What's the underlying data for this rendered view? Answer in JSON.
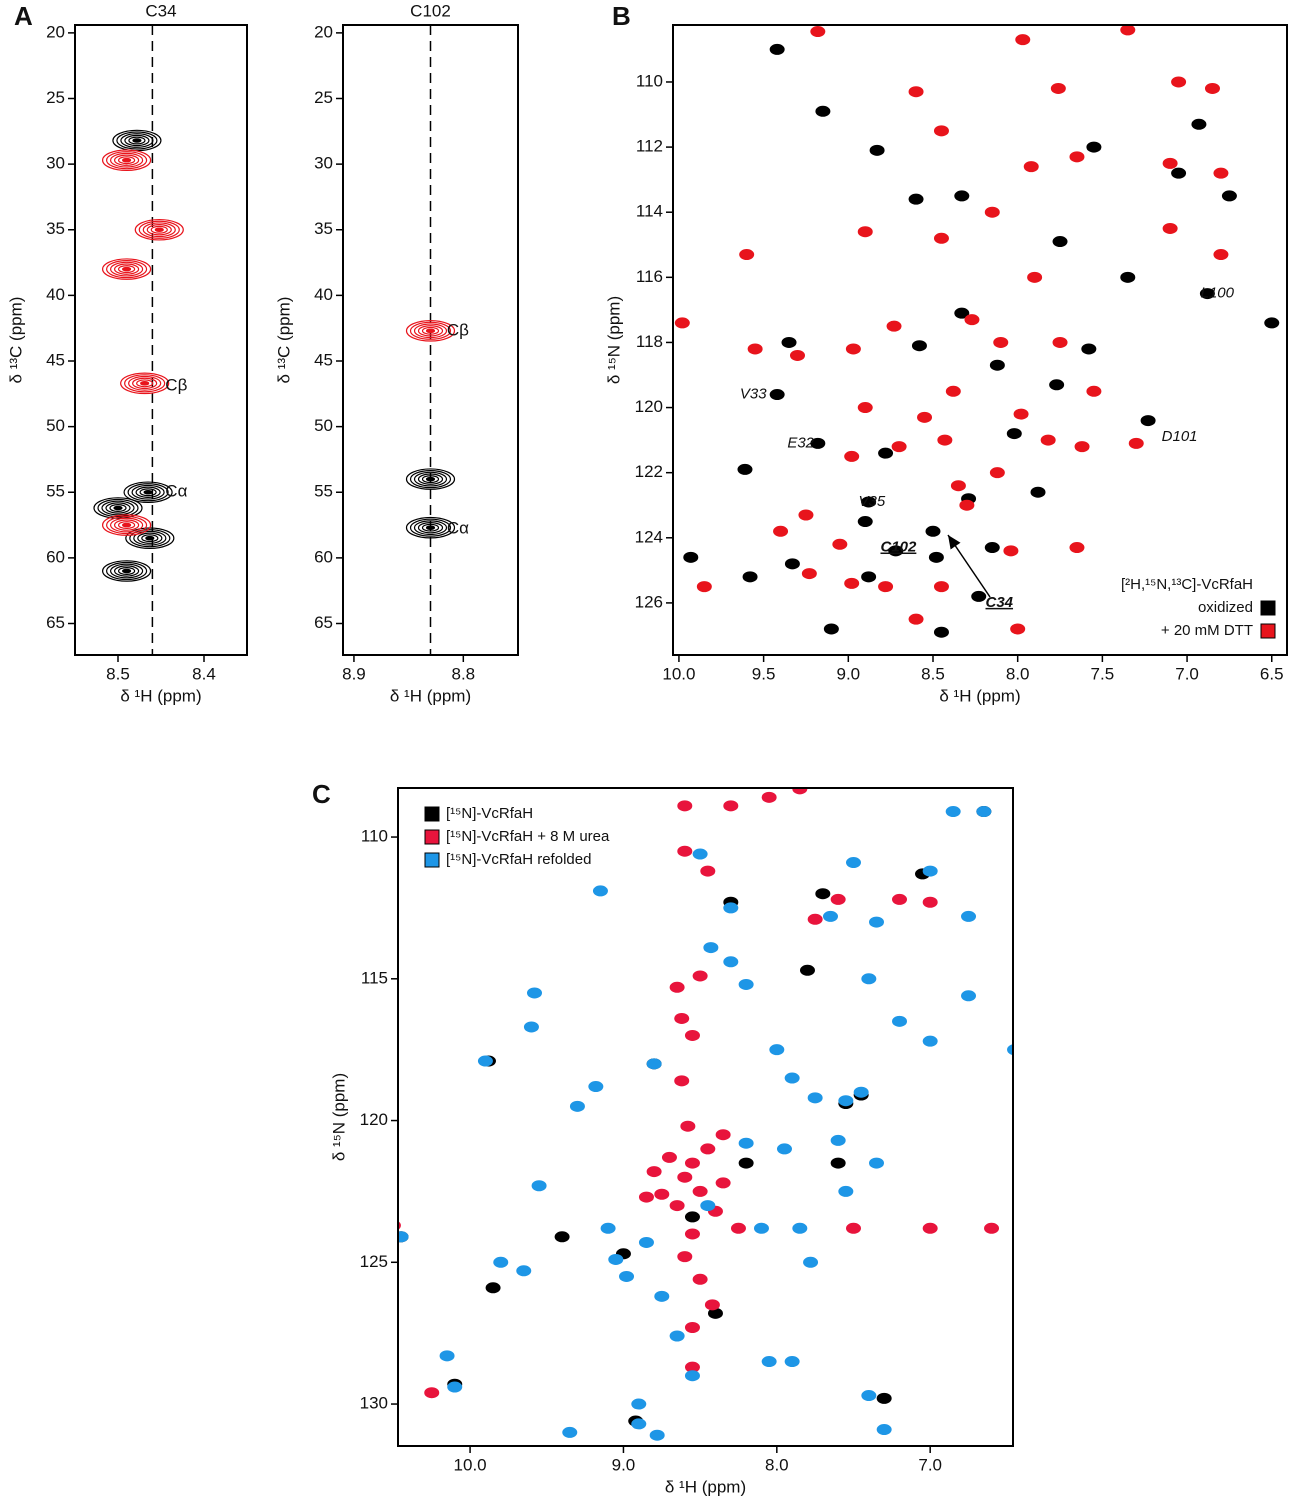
{
  "chart_data": [
    {
      "type": "scatter",
      "panel": "A",
      "title": "C34",
      "x_label": "δ ¹H (ppm)",
      "y_label": "δ ¹³C (ppm)",
      "xlim": [
        8.55,
        8.35
      ],
      "ylim": [
        19.4,
        67.4
      ],
      "x_reversed": true,
      "y_reversed": true,
      "xticks": [
        8.5,
        8.4
      ],
      "yticks": [
        20,
        25,
        30,
        35,
        40,
        45,
        50,
        55,
        60,
        65
      ],
      "vline": 8.46,
      "series": [
        {
          "color": "#000000",
          "x": [
            8.5,
            8.465,
            8.463,
            8.49,
            8.478
          ],
          "y": [
            56.2,
            55.0,
            58.5,
            61.0,
            28.2
          ]
        },
        {
          "color": "#e8141c",
          "x": [
            8.49,
            8.49,
            8.452,
            8.469,
            8.49
          ],
          "y": [
            29.7,
            38.0,
            35.0,
            46.7,
            57.5
          ]
        }
      ],
      "annotations": [
        {
          "text": "Cβ",
          "x": 8.445,
          "y": 46.9
        },
        {
          "text": "Cα",
          "x": 8.445,
          "y": 55.0
        }
      ]
    },
    {
      "type": "scatter",
      "title": "C102",
      "x_label": "δ ¹H (ppm)",
      "y_label": "δ ¹³C (ppm)",
      "xlim": [
        8.91,
        8.75
      ],
      "ylim": [
        19.4,
        67.4
      ],
      "x_reversed": true,
      "y_reversed": true,
      "xticks": [
        8.9,
        8.8
      ],
      "yticks": [
        20,
        25,
        30,
        35,
        40,
        45,
        50,
        55,
        60,
        65
      ],
      "vline": 8.83,
      "series": [
        {
          "color": "#000000",
          "x": [
            8.83,
            8.83
          ],
          "y": [
            54.0,
            57.7
          ]
        },
        {
          "color": "#e8141c",
          "x": [
            8.83
          ],
          "y": [
            42.7
          ]
        }
      ],
      "annotations": [
        {
          "text": "Cβ",
          "x": 8.815,
          "y": 42.7
        },
        {
          "text": "Cα",
          "x": 8.815,
          "y": 57.8
        }
      ]
    },
    {
      "type": "scatter",
      "panel": "B",
      "x_label": "δ ¹H (ppm)",
      "y_label": "δ ¹⁵N (ppm)",
      "xlim": [
        10.035,
        6.41
      ],
      "ylim": [
        108.25,
        127.6
      ],
      "x_reversed": true,
      "y_reversed": true,
      "xticks": [
        {
          "value": 10,
          "label": "10.0"
        },
        9.5,
        {
          "value": 9,
          "label": "9.0"
        },
        8.5,
        {
          "value": 8,
          "label": "8.0"
        },
        7.5,
        {
          "value": 7,
          "label": "7.0"
        },
        6.5
      ],
      "yticks": [
        110,
        112,
        114,
        116,
        118,
        120,
        122,
        124,
        126
      ],
      "legend_title": "[²H,¹⁵N,¹³C]-VcRfaH",
      "legend": "lower right",
      "series": [
        {
          "name": "oxidized",
          "color": "#000000",
          "x": [
            9.42,
            9.15,
            8.83,
            8.6,
            8.33,
            7.55,
            7.05,
            6.75,
            6.93,
            7.75,
            7.35,
            9.35,
            9.61,
            9.42,
            9.18,
            8.88,
            8.88,
            8.5,
            8.72,
            8.48,
            8.23,
            8.45,
            9.1,
            9.58,
            9.93,
            9.33,
            7.88,
            8.02,
            8.58,
            7.77,
            8.12,
            7.58,
            8.33,
            7.23,
            6.5,
            6.88,
            8.29,
            8.78,
            8.15,
            8.9
          ],
          "y": [
            109.0,
            110.9,
            112.1,
            113.6,
            113.5,
            112.0,
            112.8,
            113.5,
            111.3,
            114.9,
            116.0,
            118.0,
            121.9,
            119.6,
            121.1,
            122.9,
            125.2,
            123.8,
            124.4,
            124.6,
            125.8,
            126.9,
            126.8,
            125.2,
            124.6,
            124.8,
            122.6,
            120.8,
            118.1,
            119.3,
            118.7,
            118.2,
            117.1,
            120.4,
            117.4,
            116.5,
            122.8,
            121.4,
            124.3,
            123.5
          ]
        },
        {
          "name": "+ 20 mM DTT",
          "color": "#e8141c",
          "x": [
            9.6,
            9.98,
            9.55,
            9.3,
            8.97,
            8.73,
            8.9,
            8.98,
            8.7,
            8.55,
            8.43,
            8.38,
            8.27,
            8.1,
            7.98,
            7.82,
            7.62,
            7.3,
            7.75,
            7.55,
            8.35,
            8.3,
            8.12,
            8.04,
            8.45,
            8.6,
            8.78,
            9.05,
            9.25,
            9.4,
            9.23,
            9.85,
            8.98,
            8.0,
            7.65,
            8.9,
            8.45,
            8.15,
            7.92,
            7.65,
            7.1,
            6.8,
            7.1,
            6.8,
            8.6,
            8.45,
            7.76,
            7.05,
            6.85,
            7.97,
            7.35,
            9.18,
            7.9
          ],
          "y": [
            115.3,
            117.4,
            118.2,
            118.4,
            118.2,
            117.5,
            120.0,
            121.5,
            121.2,
            120.3,
            121.0,
            119.5,
            117.3,
            118.0,
            120.2,
            121.0,
            121.2,
            121.1,
            118.0,
            119.5,
            122.4,
            123.0,
            122.0,
            124.4,
            125.5,
            126.5,
            125.5,
            124.2,
            123.3,
            123.8,
            125.1,
            125.5,
            125.4,
            126.8,
            124.3,
            114.6,
            114.8,
            114.0,
            112.6,
            112.3,
            112.5,
            112.8,
            114.5,
            115.3,
            110.3,
            111.5,
            110.2,
            110.0,
            110.2,
            108.7,
            108.4,
            108.45,
            116.0
          ]
        }
      ],
      "annotations": [
        {
          "text": "L100",
          "x": 6.92,
          "y": 116.5,
          "bold": false
        },
        {
          "text": "V33",
          "x": 9.64,
          "y": 119.6,
          "bold": false
        },
        {
          "text": "D101",
          "x": 7.15,
          "y": 120.9,
          "bold": false
        },
        {
          "text": "E32",
          "x": 9.36,
          "y": 121.1,
          "bold": false
        },
        {
          "text": "V35",
          "x": 8.94,
          "y": 122.9,
          "bold": false
        },
        {
          "text": "C102",
          "x": 8.81,
          "y": 124.3,
          "bold": true
        },
        {
          "text": "C34",
          "x": 8.19,
          "y": 126.0,
          "bold": true
        }
      ]
    },
    {
      "type": "scatter",
      "panel": "C",
      "x_label": "δ ¹H (ppm)",
      "y_label": "δ ¹⁵N (ppm)",
      "xlim": [
        10.47,
        6.46
      ],
      "ylim": [
        108.27,
        131.48
      ],
      "x_reversed": true,
      "y_reversed": true,
      "xticks": [
        {
          "value": 10,
          "label": "10.0"
        },
        {
          "value": 9,
          "label": "9.0"
        },
        {
          "value": 8,
          "label": "8.0"
        },
        {
          "value": 7,
          "label": "7.0"
        }
      ],
      "yticks": [
        110,
        115,
        120,
        125,
        130
      ],
      "legend": "upper left",
      "series": [
        {
          "name": "[¹⁵N]-VcRfaH",
          "color": "#000000",
          "x": [
            10.45,
            10.1,
            9.88,
            9.4,
            9.0,
            8.55,
            8.8,
            7.45,
            7.05,
            6.65,
            7.8,
            8.92,
            7.3,
            7.6,
            8.2,
            7.7,
            8.3,
            9.85,
            8.4,
            7.55
          ],
          "y": [
            124.1,
            129.3,
            117.9,
            124.1,
            124.7,
            123.4,
            118.0,
            119.1,
            111.3,
            109.1,
            114.7,
            130.6,
            129.8,
            121.5,
            121.5,
            112.0,
            112.3,
            125.9,
            126.8,
            119.4
          ]
        },
        {
          "name": "[¹⁵N]-VcRfaH + 8 M urea",
          "color": "#e8143c",
          "x": [
            8.55,
            8.6,
            8.5,
            8.65,
            8.45,
            8.7,
            8.4,
            8.55,
            8.6,
            8.5,
            8.35,
            8.75,
            8.58,
            8.62,
            8.55,
            8.62,
            8.65,
            8.5,
            8.45,
            8.6,
            8.3,
            8.6,
            8.05,
            7.85,
            7.6,
            7.2,
            7.0,
            7.75,
            8.35,
            8.8,
            8.85,
            8.25,
            7.5,
            7.0,
            6.6,
            8.55,
            8.55,
            10.25,
            10.5,
            8.42
          ],
          "y": [
            121.5,
            122.0,
            122.5,
            123.0,
            121.0,
            121.3,
            123.2,
            124.0,
            124.8,
            125.6,
            122.2,
            122.6,
            120.2,
            118.6,
            117.0,
            116.4,
            115.3,
            114.9,
            111.2,
            110.5,
            108.9,
            108.9,
            108.6,
            108.3,
            112.2,
            112.2,
            112.3,
            112.9,
            120.5,
            121.8,
            122.7,
            123.8,
            123.8,
            123.8,
            123.8,
            127.3,
            128.7,
            129.6,
            123.7,
            126.5
          ]
        },
        {
          "name": "[¹⁵N]-VcRfaH refolded",
          "color": "#1e96e6",
          "x": [
            10.45,
            10.1,
            10.15,
            9.9,
            9.8,
            9.65,
            9.55,
            9.58,
            9.6,
            9.35,
            9.3,
            9.18,
            9.15,
            9.1,
            9.05,
            8.98,
            8.9,
            8.9,
            8.8,
            8.78,
            8.85,
            8.75,
            8.65,
            8.55,
            8.45,
            8.43,
            8.5,
            8.3,
            8.2,
            8.0,
            7.9,
            7.75,
            7.55,
            7.45,
            7.6,
            7.35,
            7.4,
            7.2,
            7.0,
            6.75,
            6.45,
            6.65,
            6.85,
            7.0,
            7.5,
            7.65,
            7.35,
            6.75,
            7.3,
            7.4,
            7.9,
            8.05,
            8.1,
            7.85,
            7.55,
            8.2,
            7.95,
            7.78,
            8.3
          ],
          "y": [
            124.1,
            129.4,
            128.3,
            117.9,
            125.0,
            125.3,
            122.3,
            115.5,
            116.7,
            131.0,
            119.5,
            118.8,
            111.9,
            123.8,
            124.9,
            125.5,
            130.0,
            130.7,
            118.0,
            131.1,
            124.3,
            126.2,
            127.6,
            129.0,
            123.0,
            113.9,
            110.6,
            114.4,
            115.2,
            117.5,
            118.5,
            119.2,
            119.3,
            119.0,
            120.7,
            121.5,
            115.0,
            116.5,
            117.2,
            115.6,
            117.5,
            109.1,
            109.1,
            111.2,
            110.9,
            112.8,
            113.0,
            112.8,
            130.9,
            129.7,
            128.5,
            128.5,
            123.8,
            123.8,
            122.5,
            120.8,
            121.0,
            125.0,
            112.5
          ]
        }
      ]
    }
  ]
}
